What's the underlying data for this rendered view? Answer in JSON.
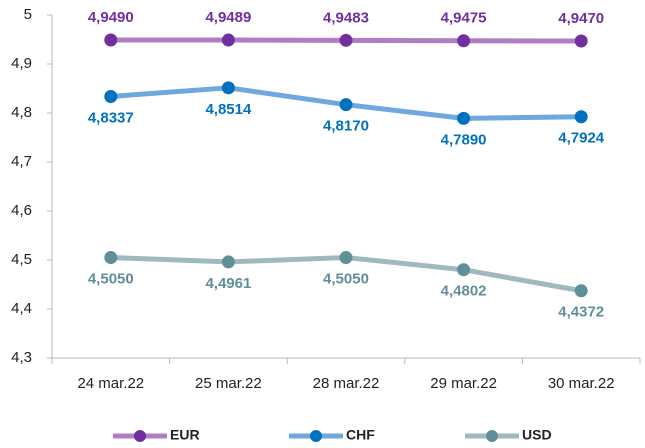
{
  "chart_data": {
    "type": "line",
    "categories": [
      "24 mar.22",
      "25 mar.22",
      "28 mar.22",
      "29 mar.22",
      "30 mar.22"
    ],
    "series": [
      {
        "name": "EUR",
        "color": "#b07cc6",
        "marker_color": "#7030a0",
        "values": [
          4.949,
          4.9489,
          4.9483,
          4.9475,
          4.947
        ],
        "value_labels": [
          "4,9490",
          "4,9489",
          "4,9483",
          "4,9475",
          "4,9470"
        ]
      },
      {
        "name": "CHF",
        "color": "#6fa8dc",
        "marker_color": "#0070c0",
        "values": [
          4.8337,
          4.8514,
          4.817,
          4.789,
          4.7924
        ],
        "value_labels": [
          "4,8337",
          "4,8514",
          "4,8170",
          "4,7890",
          "4,7924"
        ]
      },
      {
        "name": "USD",
        "color": "#9fb9bf",
        "marker_color": "#5f8f99",
        "values": [
          4.505,
          4.4961,
          4.505,
          4.4802,
          4.4372
        ],
        "value_labels": [
          "4,5050",
          "4,4961",
          "4,5050",
          "4,4802",
          "4,4372"
        ]
      }
    ],
    "ylim": [
      4.3,
      5
    ],
    "yticks": [
      {
        "value": 4.3,
        "label": "4,3"
      },
      {
        "value": 4.4,
        "label": "4,4"
      },
      {
        "value": 4.5,
        "label": "4,5"
      },
      {
        "value": 4.6,
        "label": "4,6"
      },
      {
        "value": 4.7,
        "label": "4,7"
      },
      {
        "value": 4.8,
        "label": "4,8"
      },
      {
        "value": 4.9,
        "label": "4,9"
      },
      5
    ],
    "grid": false,
    "legend": "bottom"
  }
}
